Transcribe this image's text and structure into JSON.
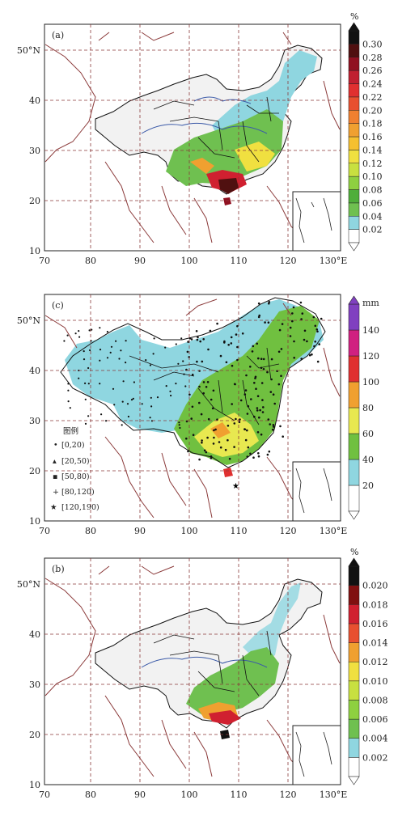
{
  "panels": [
    {
      "id": "a",
      "label": "(a)",
      "unit": "%",
      "colorbar": [
        "0.02",
        "0.04",
        "0.06",
        "0.08",
        "0.10",
        "0.12",
        "0.14",
        "0.16",
        "0.18",
        "0.20",
        "0.22",
        "0.24",
        "0.26",
        "0.28",
        "0.30"
      ],
      "x_ticks": [
        "70",
        "80",
        "90",
        "100",
        "110",
        "120",
        "130°E"
      ],
      "y_ticks": [
        "50°N",
        "40",
        "30",
        "20",
        "10"
      ]
    },
    {
      "id": "c",
      "label": "(c)",
      "unit": "mm",
      "colorbar": [
        "20",
        "40",
        "60",
        "80",
        "100",
        "120",
        "140"
      ],
      "x_ticks": [
        "70",
        "80",
        "90",
        "100",
        "110",
        "120",
        "130°E"
      ],
      "y_ticks": [
        "50°N",
        "40",
        "30",
        "20",
        "10"
      ],
      "legend": {
        "title": "图例",
        "items": [
          "[0,20)",
          "[20,50)",
          "[50,80)",
          "[80,120)",
          "[120,190)"
        ]
      }
    },
    {
      "id": "b",
      "label": "(b)",
      "unit": "%",
      "colorbar": [
        "0.002",
        "0.004",
        "0.006",
        "0.008",
        "0.010",
        "0.012",
        "0.014",
        "0.016",
        "0.018",
        "0.020"
      ],
      "x_ticks": [
        "70",
        "80",
        "90",
        "100",
        "110",
        "120",
        "130°E"
      ],
      "y_ticks": [
        "50°N",
        "40",
        "30",
        "20",
        "10"
      ]
    }
  ],
  "colors": {
    "border": "#8b3a3a",
    "grid": "#8b3a3a",
    "province": "#111111",
    "river": "#3b5aa8",
    "bar_a": [
      "#ffffff",
      "#8fd6e0",
      "#6fc050",
      "#4fae3a",
      "#8ed040",
      "#c8e040",
      "#f0e040",
      "#f5c030",
      "#f0a030",
      "#f08030",
      "#e85030",
      "#e03030",
      "#c02030",
      "#901020",
      "#501010",
      "#111111"
    ],
    "bar_c": [
      "#ffffff",
      "#8fd6e0",
      "#70c040",
      "#e8e850",
      "#f0a030",
      "#e03030",
      "#d02080",
      "#8040c0"
    ],
    "bar_b": [
      "#ffffff",
      "#8fd6e0",
      "#6fc050",
      "#8ed040",
      "#c8e040",
      "#f0e040",
      "#f0a030",
      "#e85030",
      "#d02030",
      "#801010",
      "#111111"
    ]
  }
}
